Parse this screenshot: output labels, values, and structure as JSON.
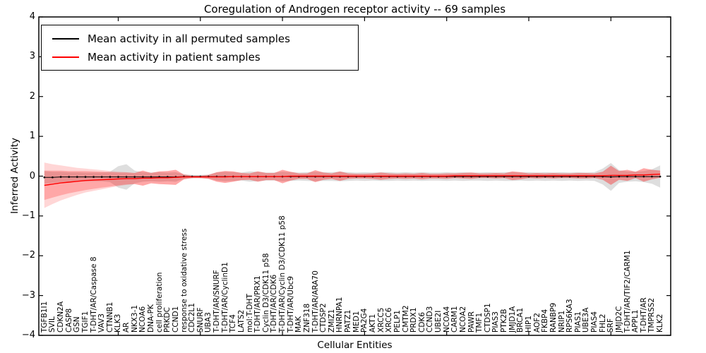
{
  "figure": {
    "title": "Coregulation of Androgen receptor activity -- 69 samples",
    "xlabel": "Cellular Entities",
    "ylabel": "Inferred Activity"
  },
  "chart_data": {
    "type": "line",
    "title": "Coregulation of Androgen receptor activity -- 69 samples",
    "xlabel": "Cellular Entities",
    "ylabel": "Inferred Activity",
    "ylim": [
      -4,
      4
    ],
    "y_ticks": [
      4,
      3,
      2,
      1,
      0,
      -1,
      -2,
      -3,
      -4
    ],
    "x_major_tick_indices": [
      9,
      19,
      29,
      39,
      49,
      59,
      69
    ],
    "grid": false,
    "legend_position": "upper left",
    "legend": [
      {
        "label": "Mean activity in all permuted samples",
        "color": "#000000"
      },
      {
        "label": "Mean activity in patient samples",
        "color": "#ff0000"
      }
    ],
    "colors": {
      "permuted_line": "#000000",
      "patient_line": "#ff0000",
      "permuted_band": "rgba(0,0,0,0.13)",
      "patient_band": "rgba(255,0,0,0.22)",
      "patient_band_outer": "rgba(255,0,0,0.16)",
      "frame": "#000000"
    },
    "categories": [
      "TGFB1I1",
      "SVIL",
      "CDKN2A",
      "CASP8",
      "GSN",
      "TGIF1",
      "T-DHT/AR/Caspase 8",
      "VAV3",
      "CTNNB1",
      "KLK3",
      "AR",
      "NKX3-1",
      "NCOA6",
      "DNA-PK",
      "cell proliferation",
      "PRKDC",
      "CCND1",
      "response to oxidative stress",
      "CDC2L1",
      "SNURF",
      "UBA3",
      "T-DHT/AR/SNURF",
      "T-DHT/AR/CyclinD1",
      "TCF4",
      "LATS2",
      "mol:T-DHT",
      "T-DHT/AR/PRX1",
      "Cyclin D3/CDK11 p58",
      "T-DHT/AR/CDK6",
      "T-DHT/AR/Cyclin D3/CDK11 p58",
      "T-DHT/AR/Ubc9",
      "MAK",
      "ZNF318",
      "T-DHT/AR/ARA70",
      "CTDSP2",
      "ZMIZ1",
      "HNRNPA1",
      "PATZ1",
      "MED1",
      "PA2G4",
      "AKT1",
      "XRCC5",
      "XRCC6",
      "PELP1",
      "CMTM2",
      "PRDX1",
      "CDK6",
      "CCND3",
      "UBE2I",
      "NCOA4",
      "CARM1",
      "NCOA2",
      "PAWR",
      "TMF1",
      "CTDSP1",
      "PIAS3",
      "PTK2B",
      "JMJD1A",
      "BRCA1",
      "HIP1",
      "AOF2",
      "FKBP4",
      "RANBP9",
      "NRIP1",
      "RPS6KA3",
      "PIAS1",
      "UBE3A",
      "PIAS4",
      "FHL2",
      "SRF",
      "JMJD2C",
      "T-DHT/AR/TIF2/CARM1",
      "APPL1",
      "T-DHT/AR",
      "TMPRSS2",
      "KLK2"
    ],
    "series_permuted": {
      "name": "Mean activity in all permuted samples",
      "mean": [
        -0.03,
        -0.03,
        -0.02,
        -0.02,
        -0.02,
        -0.02,
        -0.02,
        -0.02,
        -0.02,
        -0.02,
        -0.02,
        -0.02,
        -0.02,
        -0.02,
        -0.02,
        -0.02,
        -0.02,
        -0.01,
        -0.01,
        -0.01,
        -0.01,
        -0.01,
        -0.01,
        -0.01,
        -0.01,
        -0.01,
        -0.01,
        -0.01,
        -0.01,
        -0.01,
        -0.01,
        -0.01,
        -0.01,
        -0.01,
        -0.01,
        -0.01,
        -0.01,
        -0.01,
        -0.01,
        -0.01,
        -0.01,
        -0.01,
        -0.01,
        -0.01,
        -0.01,
        -0.01,
        -0.01,
        -0.01,
        -0.01,
        -0.01,
        -0.01,
        -0.01,
        -0.01,
        -0.01,
        -0.01,
        -0.01,
        -0.01,
        -0.01,
        -0.01,
        -0.01,
        -0.01,
        -0.01,
        -0.01,
        -0.01,
        -0.01,
        -0.01,
        -0.01,
        -0.01,
        -0.01,
        -0.02,
        -0.01,
        -0.01,
        -0.01,
        -0.01,
        -0.01,
        -0.01
      ],
      "std": [
        0.16,
        0.14,
        0.13,
        0.12,
        0.12,
        0.11,
        0.11,
        0.11,
        0.13,
        0.27,
        0.32,
        0.16,
        0.12,
        0.11,
        0.12,
        0.11,
        0.12,
        0.06,
        0.04,
        0.04,
        0.05,
        0.1,
        0.12,
        0.11,
        0.1,
        0.13,
        0.12,
        0.1,
        0.1,
        0.12,
        0.11,
        0.1,
        0.11,
        0.12,
        0.11,
        0.11,
        0.12,
        0.11,
        0.1,
        0.11,
        0.1,
        0.11,
        0.11,
        0.1,
        0.11,
        0.1,
        0.11,
        0.1,
        0.1,
        0.11,
        0.1,
        0.11,
        0.1,
        0.1,
        0.11,
        0.1,
        0.11,
        0.11,
        0.1,
        0.11,
        0.1,
        0.11,
        0.1,
        0.11,
        0.1,
        0.11,
        0.1,
        0.11,
        0.2,
        0.35,
        0.16,
        0.13,
        0.12,
        0.14,
        0.18,
        0.28
      ]
    },
    "series_patient": {
      "name": "Mean activity in patient samples",
      "mean": [
        -0.23,
        -0.2,
        -0.17,
        -0.15,
        -0.13,
        -0.11,
        -0.1,
        -0.09,
        -0.08,
        -0.07,
        -0.06,
        -0.06,
        -0.05,
        -0.05,
        -0.04,
        -0.04,
        -0.03,
        -0.02,
        -0.02,
        -0.02,
        -0.02,
        -0.02,
        -0.02,
        -0.01,
        -0.01,
        -0.01,
        -0.01,
        -0.01,
        -0.01,
        -0.01,
        0,
        0,
        0,
        0,
        0,
        0,
        0,
        0,
        0,
        0,
        0,
        0,
        0,
        0,
        0,
        0,
        0,
        0,
        0,
        0,
        0.01,
        0.01,
        0.01,
        0.01,
        0.01,
        0.01,
        0.01,
        0.01,
        0.01,
        0.01,
        0.01,
        0.01,
        0.01,
        0.01,
        0.01,
        0.01,
        0.01,
        0.01,
        0.01,
        0.02,
        0.02,
        0.02,
        0.03,
        0.03,
        0.04,
        0.05
      ],
      "std": [
        0.37,
        0.34,
        0.31,
        0.28,
        0.26,
        0.24,
        0.22,
        0.2,
        0.18,
        0.16,
        0.15,
        0.14,
        0.19,
        0.13,
        0.16,
        0.17,
        0.19,
        0.06,
        0.03,
        0.03,
        0.05,
        0.12,
        0.15,
        0.13,
        0.09,
        0.08,
        0.13,
        0.09,
        0.09,
        0.17,
        0.11,
        0.07,
        0.07,
        0.15,
        0.09,
        0.07,
        0.12,
        0.07,
        0.06,
        0.06,
        0.07,
        0.09,
        0.07,
        0.06,
        0.07,
        0.06,
        0.08,
        0.06,
        0.06,
        0.07,
        0.06,
        0.07,
        0.08,
        0.06,
        0.06,
        0.07,
        0.06,
        0.11,
        0.09,
        0.06,
        0.07,
        0.06,
        0.07,
        0.06,
        0.06,
        0.07,
        0.07,
        0.06,
        0.1,
        0.24,
        0.11,
        0.14,
        0.08,
        0.17,
        0.12,
        0.09
      ],
      "std_outer": [
        0.57,
        0.5,
        0.44,
        0.39,
        0.34,
        0.3,
        0.27,
        0.24,
        0.21,
        0.18,
        0.16,
        0.14,
        0.19,
        0.13,
        0.16,
        0.17,
        0.19,
        0.06,
        0.03,
        0.03,
        0.05,
        0.12,
        0.15,
        0.13,
        0.09,
        0.08,
        0.13,
        0.09,
        0.09,
        0.17,
        0.11,
        0.07,
        0.07,
        0.15,
        0.09,
        0.07,
        0.12,
        0.07,
        0.06,
        0.06,
        0.07,
        0.09,
        0.07,
        0.06,
        0.07,
        0.06,
        0.08,
        0.06,
        0.06,
        0.07,
        0.06,
        0.07,
        0.08,
        0.06,
        0.06,
        0.07,
        0.06,
        0.11,
        0.09,
        0.06,
        0.07,
        0.06,
        0.07,
        0.06,
        0.06,
        0.07,
        0.07,
        0.06,
        0.1,
        0.24,
        0.11,
        0.14,
        0.08,
        0.17,
        0.12,
        0.09
      ]
    }
  }
}
